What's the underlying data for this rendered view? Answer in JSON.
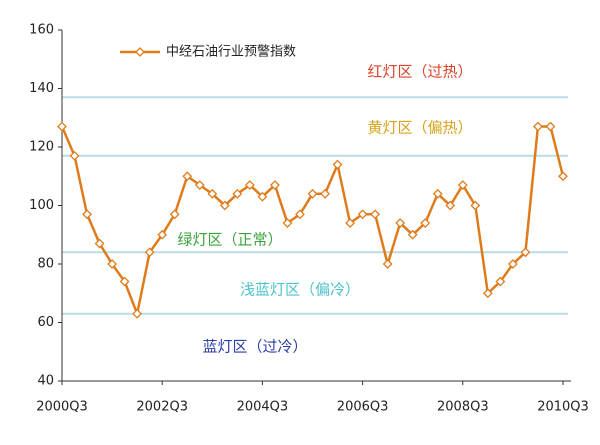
{
  "chart_data": {
    "type": "line",
    "categories": [
      "2000Q3",
      null,
      null,
      null,
      null,
      null,
      null,
      null,
      "2002Q3",
      null,
      null,
      null,
      null,
      null,
      null,
      null,
      "2004Q3",
      null,
      null,
      null,
      null,
      null,
      null,
      null,
      "2006Q3",
      null,
      null,
      null,
      null,
      null,
      null,
      null,
      "2008Q3",
      null,
      null,
      null,
      null,
      null,
      null,
      null,
      "2010Q3"
    ],
    "series": [
      {
        "name": "中经石油行业预警指数",
        "color": "#e07b1a",
        "values": [
          127,
          117,
          97,
          87,
          80,
          74,
          63,
          84,
          90,
          97,
          110,
          107,
          104,
          100,
          104,
          107,
          103,
          107,
          94,
          97,
          104,
          104,
          114,
          94,
          97,
          97,
          80,
          94,
          90,
          94,
          104,
          100,
          107,
          100,
          70,
          74,
          80,
          84,
          127,
          127,
          110
        ]
      }
    ],
    "ylim": [
      40,
      160
    ],
    "yticks": [
      40,
      60,
      80,
      100,
      120,
      140,
      160
    ],
    "zone_lines": [
      137,
      117,
      84,
      63
    ],
    "zone_line_color": "#b9dcea",
    "zones": [
      {
        "label": "红灯区（过热）",
        "color": "#d9432b"
      },
      {
        "label": "黄灯区（偏热）",
        "color": "#d9a21b"
      },
      {
        "label": "绿灯区（正常）",
        "color": "#3aa33a"
      },
      {
        "label": "浅蓝灯区（偏冷）",
        "color": "#4cc3c9"
      },
      {
        "label": "蓝灯区（过冷）",
        "color": "#2a3fa8"
      }
    ]
  }
}
